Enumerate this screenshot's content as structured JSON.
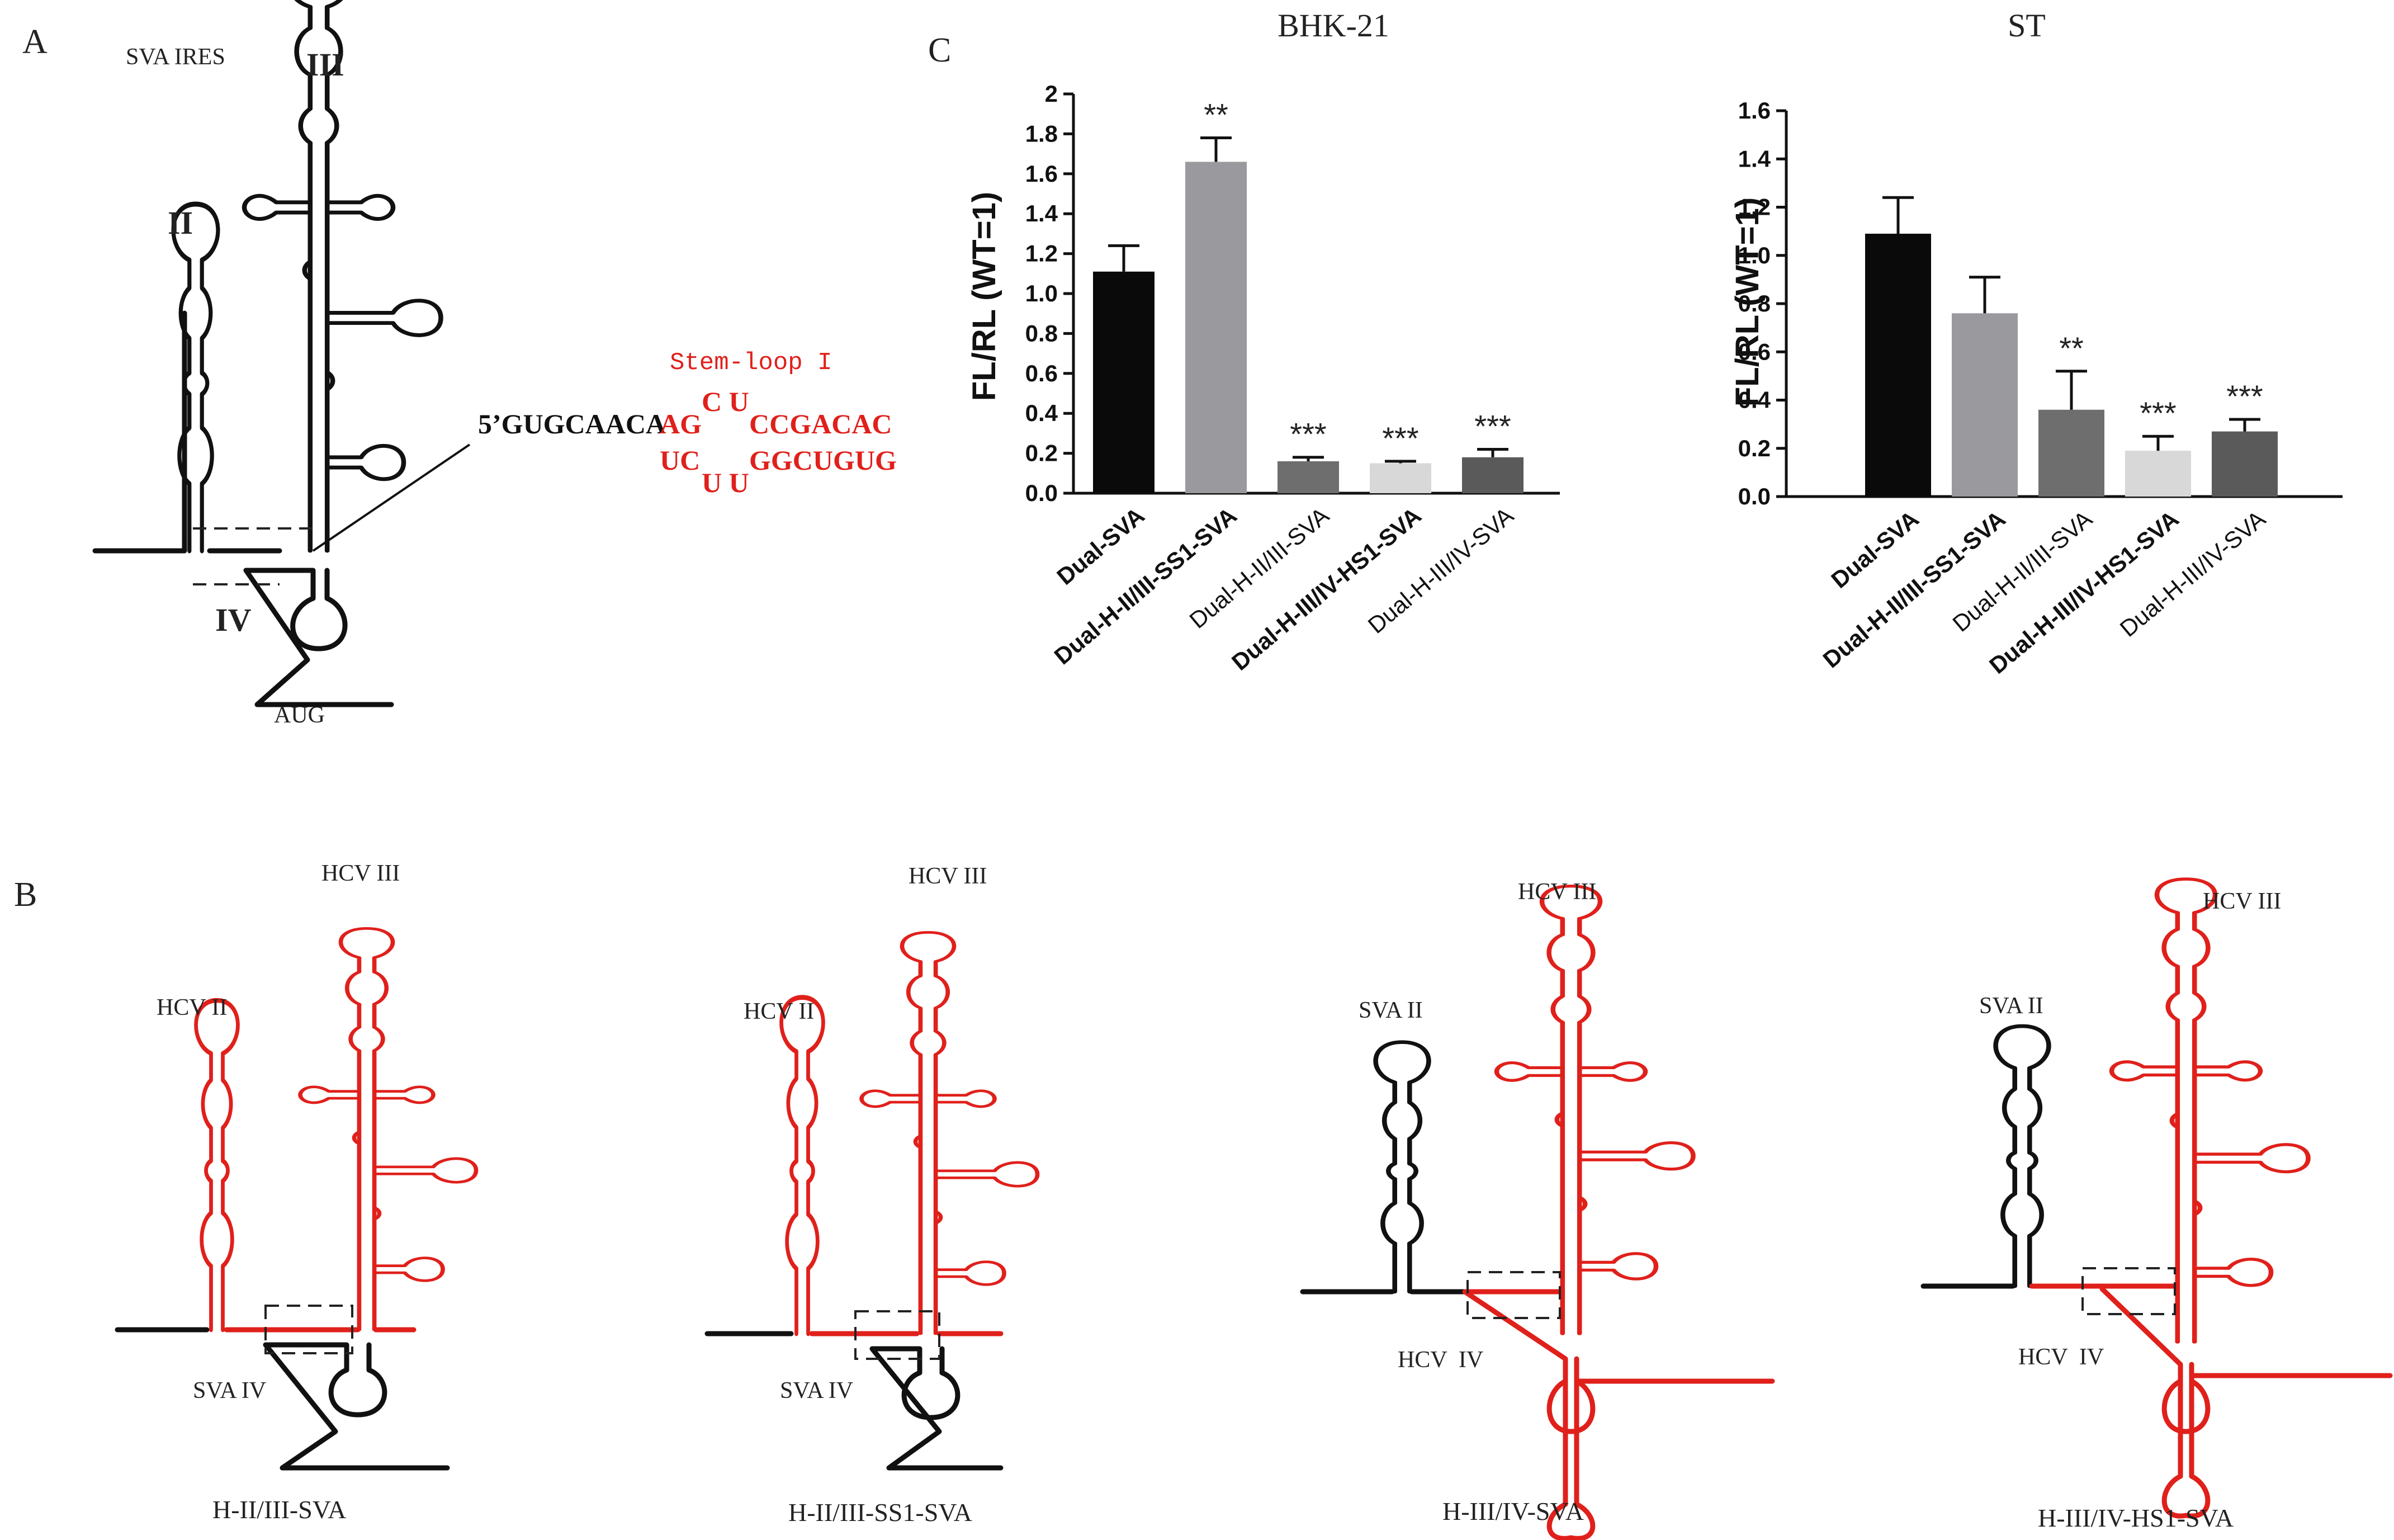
{
  "panels": {
    "A": {
      "letter": "A",
      "title": "SVA IRES",
      "domain_labels": {
        "II": "II",
        "III": "III",
        "IV": "IV"
      },
      "aug": "AUG",
      "stem_loop_label": "Stem-loop I",
      "seq_black_prefix": "5’GUGCAACA",
      "seq_red_top_1": "AG",
      "seq_red_bulge_top": "C U",
      "seq_red_top_2": "CCGACAC",
      "seq_red_bottom_1": "UC",
      "seq_red_bulge_bottom": "U U",
      "seq_red_bottom_2": "GGCUGUG"
    },
    "B": {
      "letter": "B",
      "constructs": [
        {
          "name": "H-II/III-SVA",
          "labels": [
            "HCV II",
            "HCV III",
            "SVA IV"
          ]
        },
        {
          "name": "H-II/III-SS1-SVA",
          "labels": [
            "HCV II",
            "HCV III",
            "SVA IV"
          ]
        },
        {
          "name": "H-III/IV-SVA",
          "labels": [
            "SVA II",
            "HCV III",
            "HCV  IV"
          ]
        },
        {
          "name": "H-III/IV-HS1-SVA",
          "labels": [
            "SVA II",
            "HCV III",
            "HCV  IV"
          ]
        }
      ]
    },
    "C": {
      "letter": "C"
    }
  },
  "chart_data": [
    {
      "type": "bar",
      "title": "BHK-21",
      "ylabel": "FL/RL (WT=1)",
      "ylim": [
        0,
        2
      ],
      "yticks": [
        "0.0",
        "0.2",
        "0.4",
        "0.6",
        "0.8",
        "1.0",
        "1.2",
        "1.4",
        "1.6",
        "1.8",
        "2"
      ],
      "categories": [
        "Dual-SVA",
        "Dual-H-II/III-SS1-SVA",
        "Dual-H-II/III-SVA",
        "Dual-H-III/IV-HS1-SVA",
        "Dual-H-III/IV-SVA"
      ],
      "values": [
        1.11,
        1.66,
        0.16,
        0.15,
        0.18
      ],
      "errors": [
        0.13,
        0.12,
        0.02,
        0.01,
        0.04
      ],
      "significance": [
        "",
        "**",
        "***",
        "***",
        "***"
      ],
      "colors": [
        "#0a0a0a",
        "#9a9a9e",
        "#6e6e6e",
        "#d8d8d8",
        "#5a5a5a"
      ]
    },
    {
      "type": "bar",
      "title": "ST",
      "ylabel": "FL/RL (WT=1)",
      "ylim": [
        0,
        1.6
      ],
      "yticks": [
        "0.0",
        "0.2",
        "0.4",
        "0.6",
        "0.8",
        "1.0",
        "1.2",
        "1.4",
        "1.6"
      ],
      "categories": [
        "Dual-SVA",
        "Dual-H-II/III-SS1-SVA",
        "Dual-H-II/III-SVA",
        "Dual-H-III/IV-HS1-SVA",
        "Dual-H-III/IV-SVA"
      ],
      "values": [
        1.09,
        0.76,
        0.36,
        0.19,
        0.27
      ],
      "errors": [
        0.15,
        0.15,
        0.16,
        0.06,
        0.05
      ],
      "significance": [
        "",
        "",
        "**",
        "***",
        "***"
      ],
      "colors": [
        "#0a0a0a",
        "#9a9a9e",
        "#6e6e6e",
        "#d8d8d8",
        "#5a5a5a"
      ]
    }
  ]
}
